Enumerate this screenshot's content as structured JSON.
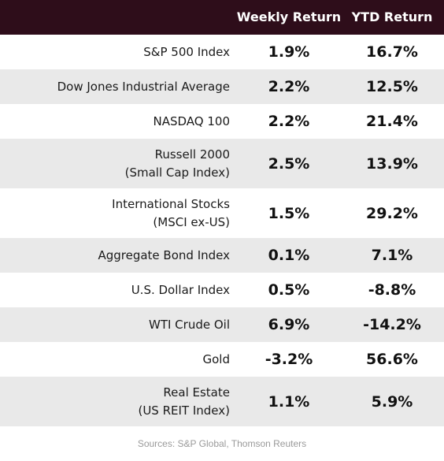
{
  "header": {
    "weekly_label": "Weekly Return",
    "ytd_label": "YTD Return"
  },
  "rows": [
    {
      "name_line1": "S&P 500 Index",
      "name_line2": "",
      "weekly": "1.9%",
      "ytd": "16.7%"
    },
    {
      "name_line1": "Dow Jones Industrial Average",
      "name_line2": "",
      "weekly": "2.2%",
      "ytd": "12.5%"
    },
    {
      "name_line1": "NASDAQ 100",
      "name_line2": "",
      "weekly": "2.2%",
      "ytd": "21.4%"
    },
    {
      "name_line1": "Russell 2000",
      "name_line2": "(Small Cap Index)",
      "weekly": "2.5%",
      "ytd": "13.9%"
    },
    {
      "name_line1": "International Stocks",
      "name_line2": "(MSCI ex-US)",
      "weekly": "1.5%",
      "ytd": "29.2%"
    },
    {
      "name_line1": "Aggregate Bond Index",
      "name_line2": "",
      "weekly": "0.1%",
      "ytd": "7.1%"
    },
    {
      "name_line1": "U.S. Dollar Index",
      "name_line2": "",
      "weekly": "0.5%",
      "ytd": "-8.8%"
    },
    {
      "name_line1": "WTI Crude Oil",
      "name_line2": "",
      "weekly": "6.9%",
      "ytd": "-14.2%"
    },
    {
      "name_line1": "Gold",
      "name_line2": "",
      "weekly": "-3.2%",
      "ytd": "56.6%"
    },
    {
      "name_line1": "Real Estate",
      "name_line2": "(US REIT Index)",
      "weekly": "1.1%",
      "ytd": "5.9%"
    }
  ],
  "footer": {
    "source": "Sources: S&P Global, Thomson Reuters"
  },
  "colors": {
    "header_bg": "#2e0d1a",
    "alt_row_bg": "#e9e9e9"
  }
}
